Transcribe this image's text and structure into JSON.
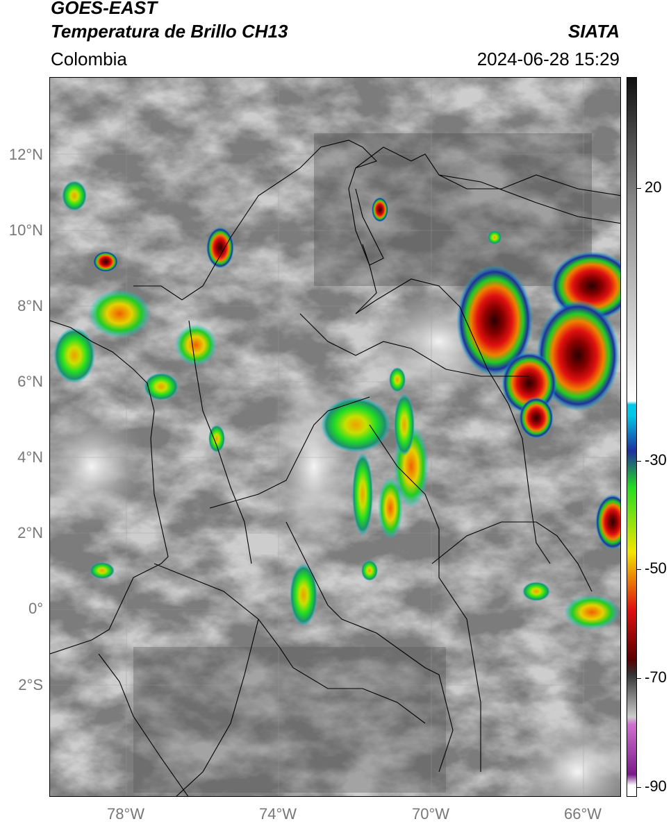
{
  "header": {
    "title_line1": "GOES-EAST",
    "title_line2": "Temperatura de Brillo CH13",
    "organization": "SIATA",
    "region": "Colombia",
    "timestamp": "2024-06-28 15:29"
  },
  "map": {
    "lat_labels": [
      "12°N",
      "10°N",
      "8°N",
      "6°N",
      "4°N",
      "2°N",
      "0°",
      "2°S"
    ],
    "lon_labels": [
      "78°W",
      "74°W",
      "70°W",
      "66°W"
    ]
  },
  "colorbar": {
    "labels": [
      "20",
      "-30",
      "-50",
      "-70",
      "-90"
    ],
    "colors": {
      "warm_top": "#111111",
      "gray_mid": "#8c8c8c",
      "white": "#ffffff",
      "cyan": "#00c8e6",
      "blue": "#1e2f9e",
      "green": "#22dd22",
      "yellow": "#f2e600",
      "red": "#e01010",
      "dark_red": "#5a0000",
      "pink": "#d070d0",
      "purple": "#7a1a8a"
    }
  }
}
